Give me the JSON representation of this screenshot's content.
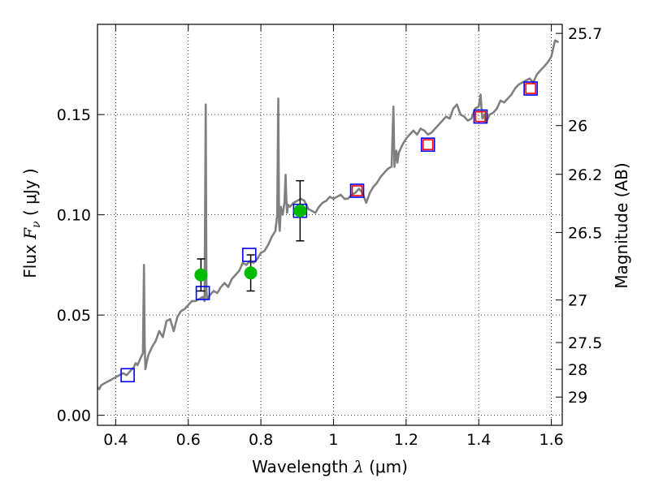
{
  "chart_data": {
    "type": "line",
    "title": "",
    "xlabel": "Wavelength  λ (μm)",
    "xlabel_parts": {
      "main": "Wavelength  ",
      "sym": "λ",
      "unit": " (μm)"
    },
    "ylabel_parts": {
      "main": "Flux  ",
      "sym": "F",
      "sub": "ν",
      "unit": " ( μJy )"
    },
    "ylabel_right": "Magnitude (AB)",
    "xlim": [
      0.35,
      1.63
    ],
    "ylim": [
      -0.005,
      0.195
    ],
    "grid": true,
    "x_ticks": [
      {
        "value": 0.4,
        "label": "0.4"
      },
      {
        "value": 0.6,
        "label": "0.6"
      },
      {
        "value": 0.8,
        "label": "0.8"
      },
      {
        "value": 1.0,
        "label": "1"
      },
      {
        "value": 1.2,
        "label": "1.2"
      },
      {
        "value": 1.4,
        "label": "1.4"
      },
      {
        "value": 1.6,
        "label": "1.6"
      }
    ],
    "y_ticks": [
      {
        "value": 0.0,
        "label": "0.00"
      },
      {
        "value": 0.05,
        "label": "0.05"
      },
      {
        "value": 0.1,
        "label": "0.10"
      },
      {
        "value": 0.15,
        "label": "0.15"
      }
    ],
    "right_ticks": [
      {
        "mag": "25.7",
        "flux": 0.1905
      },
      {
        "mag": "26",
        "flux": 0.1445
      },
      {
        "mag": "26.2",
        "flux": 0.1202
      },
      {
        "mag": "26.5",
        "flux": 0.0912
      },
      {
        "mag": "27",
        "flux": 0.0575
      },
      {
        "mag": "27.5",
        "flux": 0.0363
      },
      {
        "mag": "28",
        "flux": 0.0229
      },
      {
        "mag": "29",
        "flux": 0.0091
      }
    ],
    "series": [
      {
        "type": "line",
        "color": "#808080",
        "x": [
          0.35,
          0.355,
          0.36,
          0.37,
          0.38,
          0.39,
          0.4,
          0.41,
          0.42,
          0.43,
          0.44,
          0.45,
          0.455,
          0.46,
          0.465,
          0.47,
          0.475,
          0.478,
          0.48,
          0.482,
          0.485,
          0.49,
          0.5,
          0.51,
          0.52,
          0.53,
          0.54,
          0.55,
          0.56,
          0.57,
          0.58,
          0.59,
          0.6,
          0.61,
          0.62,
          0.63,
          0.64,
          0.645,
          0.648,
          0.65,
          0.652,
          0.655,
          0.66,
          0.67,
          0.68,
          0.69,
          0.7,
          0.71,
          0.72,
          0.73,
          0.74,
          0.75,
          0.76,
          0.77,
          0.78,
          0.79,
          0.8,
          0.81,
          0.82,
          0.83,
          0.84,
          0.845,
          0.848,
          0.85,
          0.852,
          0.855,
          0.86,
          0.865,
          0.868,
          0.87,
          0.872,
          0.875,
          0.88,
          0.89,
          0.9,
          0.91,
          0.92,
          0.93,
          0.94,
          0.95,
          0.96,
          0.97,
          0.98,
          0.99,
          1.0,
          1.01,
          1.02,
          1.03,
          1.04,
          1.05,
          1.06,
          1.07,
          1.08,
          1.09,
          1.1,
          1.11,
          1.12,
          1.13,
          1.14,
          1.15,
          1.16,
          1.165,
          1.168,
          1.17,
          1.173,
          1.176,
          1.18,
          1.19,
          1.2,
          1.21,
          1.22,
          1.23,
          1.24,
          1.25,
          1.26,
          1.27,
          1.28,
          1.29,
          1.3,
          1.31,
          1.32,
          1.33,
          1.34,
          1.35,
          1.36,
          1.37,
          1.38,
          1.39,
          1.4,
          1.405,
          1.408,
          1.41,
          1.415,
          1.42,
          1.43,
          1.44,
          1.45,
          1.46,
          1.47,
          1.48,
          1.49,
          1.5,
          1.51,
          1.52,
          1.53,
          1.54,
          1.55,
          1.56,
          1.57,
          1.58,
          1.59,
          1.6,
          1.61,
          1.62
        ],
        "y": [
          0.014,
          0.013,
          0.015,
          0.016,
          0.017,
          0.018,
          0.019,
          0.02,
          0.021,
          0.02,
          0.022,
          0.024,
          0.026,
          0.025,
          0.027,
          0.029,
          0.031,
          0.075,
          0.035,
          0.023,
          0.026,
          0.03,
          0.034,
          0.037,
          0.042,
          0.039,
          0.047,
          0.048,
          0.042,
          0.049,
          0.052,
          0.053,
          0.055,
          0.057,
          0.057,
          0.058,
          0.059,
          0.057,
          0.155,
          0.062,
          0.058,
          0.059,
          0.06,
          0.062,
          0.061,
          0.064,
          0.066,
          0.064,
          0.068,
          0.07,
          0.072,
          0.076,
          0.075,
          0.077,
          0.076,
          0.078,
          0.081,
          0.082,
          0.085,
          0.089,
          0.092,
          0.1,
          0.158,
          0.097,
          0.092,
          0.104,
          0.1,
          0.106,
          0.12,
          0.108,
          0.101,
          0.105,
          0.104,
          0.106,
          0.107,
          0.108,
          0.107,
          0.103,
          0.102,
          0.101,
          0.104,
          0.106,
          0.107,
          0.109,
          0.108,
          0.109,
          0.11,
          0.108,
          0.108,
          0.11,
          0.111,
          0.113,
          0.111,
          0.106,
          0.111,
          0.114,
          0.116,
          0.119,
          0.121,
          0.123,
          0.124,
          0.154,
          0.124,
          0.128,
          0.132,
          0.126,
          0.131,
          0.135,
          0.138,
          0.14,
          0.142,
          0.14,
          0.143,
          0.142,
          0.14,
          0.141,
          0.143,
          0.145,
          0.147,
          0.149,
          0.148,
          0.153,
          0.155,
          0.15,
          0.149,
          0.147,
          0.148,
          0.153,
          0.154,
          0.16,
          0.152,
          0.148,
          0.15,
          0.146,
          0.15,
          0.151,
          0.153,
          0.157,
          0.156,
          0.158,
          0.16,
          0.163,
          0.165,
          0.166,
          0.167,
          0.168,
          0.166,
          0.17,
          0.172,
          0.174,
          0.176,
          0.179,
          0.187,
          0.186
        ]
      },
      {
        "type": "scatter",
        "marker": "square",
        "color": "#0000ff",
        "x": [
          0.433,
          0.64,
          0.768,
          0.908,
          1.065,
          1.26,
          1.405,
          1.543
        ],
        "y": [
          0.02,
          0.061,
          0.08,
          0.102,
          0.112,
          0.135,
          0.149,
          0.163
        ]
      },
      {
        "type": "scatter",
        "marker": "square",
        "color": "#ff0000",
        "x": [
          1.065,
          1.26,
          1.405,
          1.543
        ],
        "y": [
          0.112,
          0.135,
          0.149,
          0.163
        ]
      },
      {
        "type": "scatter",
        "marker": "circle",
        "color": "#00bb00",
        "x": [
          0.635,
          0.772,
          0.908
        ],
        "y": [
          0.07,
          0.071,
          0.102
        ],
        "yerr": [
          0.008,
          0.009,
          0.015
        ]
      }
    ]
  }
}
